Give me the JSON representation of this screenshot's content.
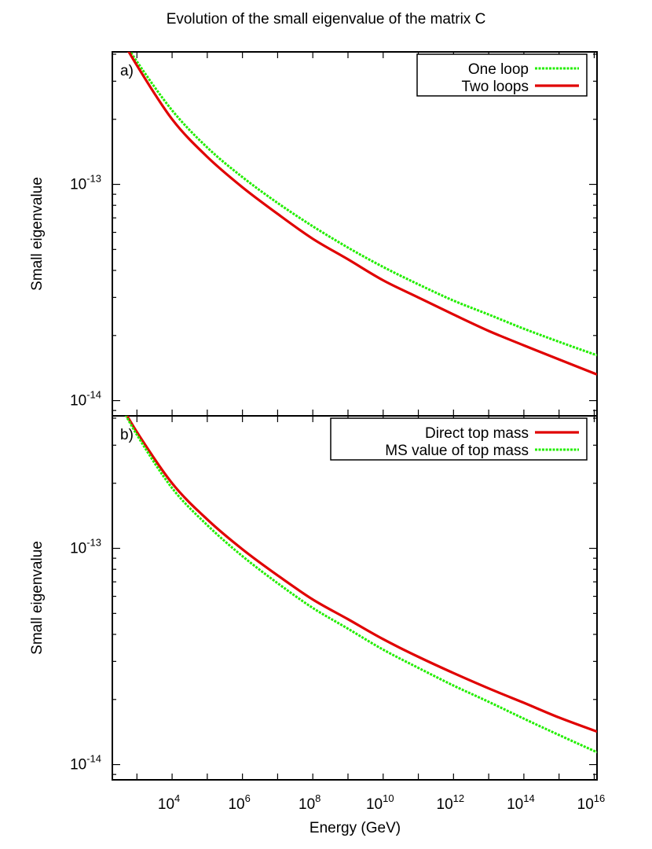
{
  "figure_title": "Evolution of the small eigenvalue of the matrix C",
  "xlabel": "Energy (GeV)",
  "chart_data": [
    {
      "type": "line",
      "panel_label": "a)",
      "title": "Evolution of the small eigenvalue of the matrix C",
      "xlabel": "",
      "ylabel": "Small eigenvalue",
      "xscale": "log",
      "yscale": "log",
      "xlim": [
        200,
        1.2e+16
      ],
      "ylim": [
        8.5e-15,
        4.1e-13
      ],
      "xticks": [
        10000.0,
        1000000.0,
        100000000.0,
        10000000000.0,
        1000000000000.0,
        100000000000000.0,
        1e+16
      ],
      "yticks": [
        1e-14,
        1e-13
      ],
      "grid": false,
      "legend_position": "top-right",
      "x": [
        200,
        1000.0,
        10000.0,
        100000.0,
        1000000.0,
        10000000.0,
        100000000.0,
        1000000000.0,
        10000000000.0,
        100000000000.0,
        1000000000000.0,
        10000000000000.0,
        100000000000000.0,
        1000000000000000.0,
        1.2e+16
      ],
      "series": [
        {
          "name": "One loop",
          "color": "#22ee00",
          "dash": "dotted",
          "values": [
            5.6e-13,
            3.7e-13,
            2.2e-13,
            1.48e-13,
            1.08e-13,
            8.2e-14,
            6.4e-14,
            5.1e-14,
            4.15e-14,
            3.45e-14,
            2.9e-14,
            2.5e-14,
            2.15e-14,
            1.87e-14,
            1.62e-14
          ]
        },
        {
          "name": "Two loops",
          "color": "#e00000",
          "dash": "solid",
          "values": [
            5.6e-13,
            3.55e-13,
            2e-13,
            1.34e-13,
            9.7e-14,
            7.3e-14,
            5.6e-14,
            4.5e-14,
            3.6e-14,
            3e-14,
            2.5e-14,
            2.1e-14,
            1.8e-14,
            1.55e-14,
            1.32e-14
          ]
        }
      ]
    },
    {
      "type": "line",
      "panel_label": "b)",
      "xlabel": "Energy (GeV)",
      "ylabel": "Small eigenvalue",
      "xscale": "log",
      "yscale": "log",
      "xlim": [
        200,
        1.2e+16
      ],
      "ylim": [
        8.5e-15,
        4.1e-13
      ],
      "xticks": [
        10000.0,
        1000000.0,
        100000000.0,
        10000000000.0,
        1000000000000.0,
        100000000000000.0,
        1e+16
      ],
      "yticks": [
        1e-14,
        1e-13
      ],
      "grid": false,
      "legend_position": "top-right",
      "x": [
        200,
        1000.0,
        10000.0,
        100000.0,
        1000000.0,
        10000000.0,
        100000000.0,
        1000000000.0,
        10000000000.0,
        100000000000.0,
        1000000000000.0,
        10000000000000.0,
        100000000000000.0,
        1000000000000000.0,
        1.2e+16
      ],
      "series": [
        {
          "name": "Direct top mass",
          "color": "#e00000",
          "dash": "solid",
          "values": [
            5.4e-13,
            3.45e-13,
            2e-13,
            1.36e-13,
            9.9e-14,
            7.5e-14,
            5.8e-14,
            4.7e-14,
            3.8e-14,
            3.15e-14,
            2.65e-14,
            2.25e-14,
            1.93e-14,
            1.65e-14,
            1.42e-14
          ]
        },
        {
          "name": "MS value of top mass",
          "color": "#22ee00",
          "dash": "dotted",
          "values": [
            5.4e-13,
            3.35e-13,
            1.9e-13,
            1.28e-13,
            9.2e-14,
            6.9e-14,
            5.3e-14,
            4.25e-14,
            3.4e-14,
            2.8e-14,
            2.32e-14,
            1.95e-14,
            1.63e-14,
            1.37e-14,
            1.14e-14
          ]
        }
      ]
    }
  ]
}
